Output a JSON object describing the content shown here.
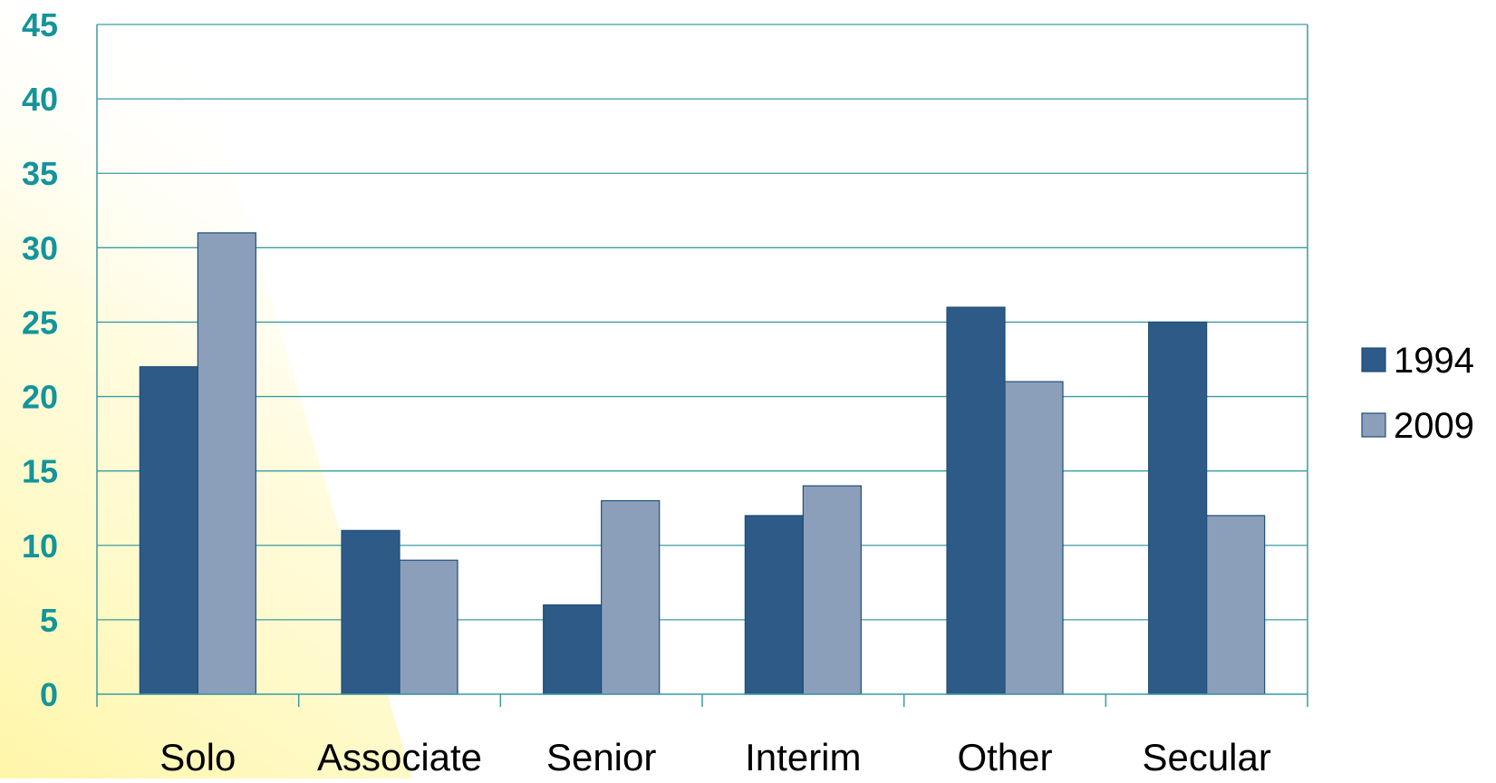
{
  "chart_data": {
    "type": "bar",
    "title": "",
    "xlabel": "",
    "ylabel": "",
    "categories": [
      "Solo",
      "Associate",
      "Senior",
      "Interim",
      "Other",
      "Secular"
    ],
    "series": [
      {
        "name": "1994",
        "values": [
          22,
          11,
          6,
          12,
          26,
          25
        ]
      },
      {
        "name": "2009",
        "values": [
          31,
          9,
          13,
          14,
          21,
          12
        ]
      }
    ],
    "ylim": [
      0,
      45
    ],
    "y_ticks": [
      "0",
      "5",
      "10",
      "15",
      "20",
      "25",
      "30",
      "35",
      "40",
      "45"
    ],
    "grid": true,
    "legend_position": "right",
    "colors": {
      "series_1994": "#2e5a88",
      "series_2009": "#8c9fba",
      "bar_stroke": "#1f4e79",
      "axis_tick_text": "#14949b",
      "gridline": "#3a9ca3",
      "background_glow": "#fff7b0"
    }
  }
}
